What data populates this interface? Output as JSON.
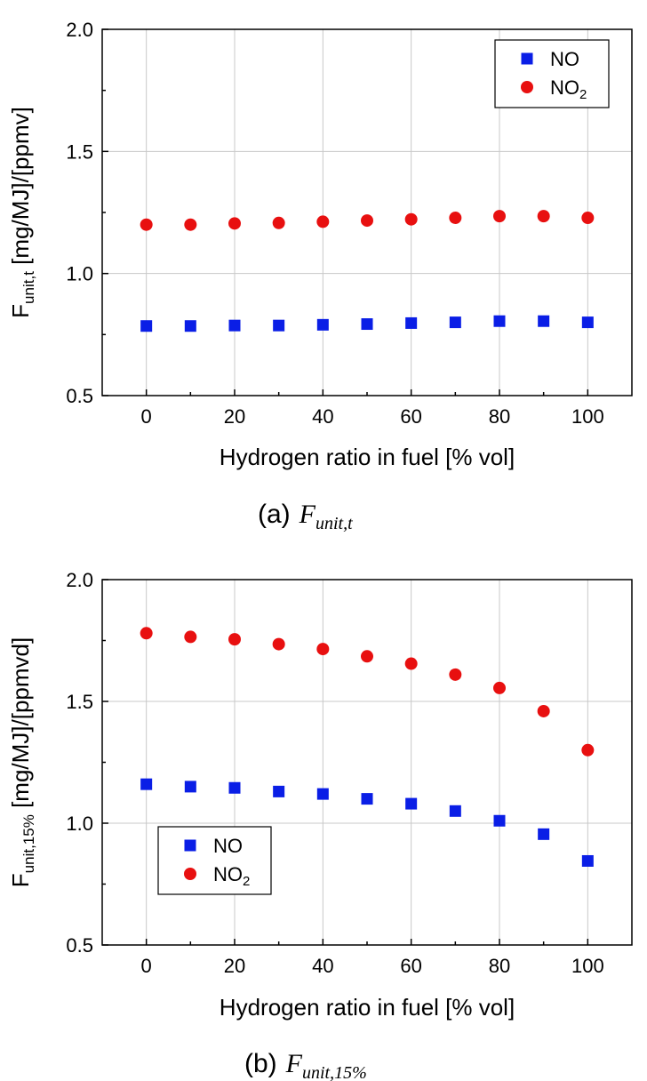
{
  "chart_data": [
    {
      "type": "scatter",
      "panel_caption_prefix": "(a)",
      "caption_symbol": "F",
      "caption_subscript": "unit,t",
      "ylabel_main": "F",
      "ylabel_sub": "unit,t",
      "ylabel_rest": " [mg/MJ]/[ppmv]",
      "xlabel": "Hydrogen ratio in fuel [% vol]",
      "xlim": [
        -10,
        110
      ],
      "ylim": [
        0.5,
        2.0
      ],
      "x_ticks": [
        0,
        20,
        40,
        60,
        80,
        100
      ],
      "y_ticks": [
        0.5,
        1.0,
        1.5,
        2.0
      ],
      "y_tick_labels": [
        "0.5",
        "1.0",
        "1.5",
        "2.0"
      ],
      "grid": true,
      "legend_position": "top-right",
      "x": [
        0,
        10,
        20,
        30,
        40,
        50,
        60,
        70,
        80,
        90,
        100
      ],
      "series": [
        {
          "name": "NO",
          "name_sub": "",
          "marker": "square",
          "color": "#0a1ee6",
          "values": [
            0.785,
            0.785,
            0.787,
            0.787,
            0.79,
            0.793,
            0.797,
            0.8,
            0.805,
            0.805,
            0.8
          ]
        },
        {
          "name": "NO",
          "name_sub": "2",
          "marker": "circle",
          "color": "#e81010",
          "values": [
            1.2,
            1.2,
            1.205,
            1.207,
            1.212,
            1.217,
            1.222,
            1.228,
            1.235,
            1.235,
            1.228
          ]
        }
      ]
    },
    {
      "type": "scatter",
      "panel_caption_prefix": "(b)",
      "caption_symbol": "F",
      "caption_subscript": "unit,15%",
      "ylabel_main": "F",
      "ylabel_sub": "unit,15%",
      "ylabel_rest": " [mg/MJ]/[ppmvd]",
      "xlabel": "Hydrogen ratio in fuel [% vol]",
      "xlim": [
        -10,
        110
      ],
      "ylim": [
        0.5,
        2.0
      ],
      "x_ticks": [
        0,
        20,
        40,
        60,
        80,
        100
      ],
      "y_ticks": [
        0.5,
        1.0,
        1.5,
        2.0
      ],
      "y_tick_labels": [
        "0.5",
        "1.0",
        "1.5",
        "2.0"
      ],
      "grid": true,
      "legend_position": "bottom-left",
      "x": [
        0,
        10,
        20,
        30,
        40,
        50,
        60,
        70,
        80,
        90,
        100
      ],
      "series": [
        {
          "name": "NO",
          "name_sub": "",
          "marker": "square",
          "color": "#0a1ee6",
          "values": [
            1.16,
            1.15,
            1.145,
            1.13,
            1.12,
            1.1,
            1.08,
            1.05,
            1.01,
            0.955,
            0.845
          ]
        },
        {
          "name": "NO",
          "name_sub": "2",
          "marker": "circle",
          "color": "#e81010",
          "values": [
            1.78,
            1.765,
            1.755,
            1.735,
            1.715,
            1.685,
            1.655,
            1.61,
            1.555,
            1.46,
            1.3
          ]
        }
      ]
    }
  ]
}
